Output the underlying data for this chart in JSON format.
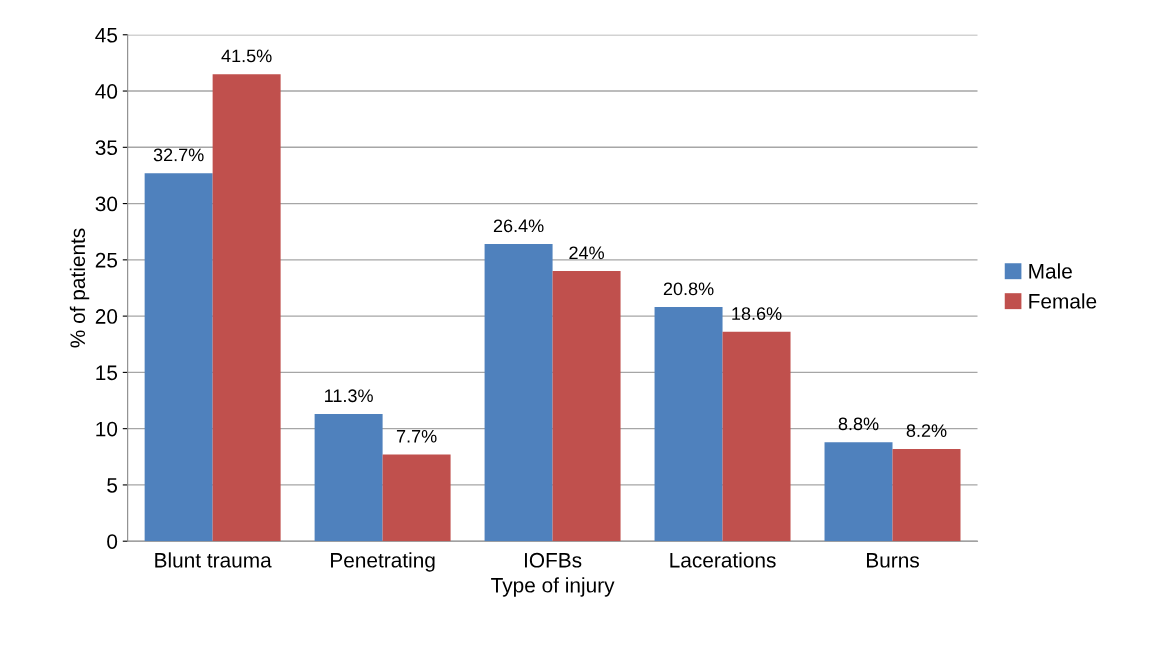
{
  "chart_data": {
    "type": "bar",
    "xlabel": "Type of injury",
    "ylabel": "% of patients",
    "categories": [
      "Blunt trauma",
      "Penetrating",
      "IOFBs",
      "Lacerations",
      "Burns"
    ],
    "series": [
      {
        "name": "Male",
        "color": "#4f81bd",
        "values": [
          32.7,
          11.3,
          26.4,
          20.8,
          8.8
        ],
        "value_labels": [
          "32.7%",
          "11.3%",
          "26.4%",
          "20.8%",
          "8.8%"
        ]
      },
      {
        "name": "Female",
        "color": "#c0504d",
        "values": [
          41.5,
          7.7,
          24,
          18.6,
          8.2
        ],
        "value_labels": [
          "41.5%",
          "7.7%",
          "24%",
          "18.6%",
          "8.2%"
        ]
      }
    ],
    "ylim": [
      0,
      45
    ],
    "yticks": [
      0,
      5,
      10,
      15,
      20,
      25,
      30,
      35,
      40,
      45
    ],
    "grid": "y",
    "legend": "right"
  }
}
